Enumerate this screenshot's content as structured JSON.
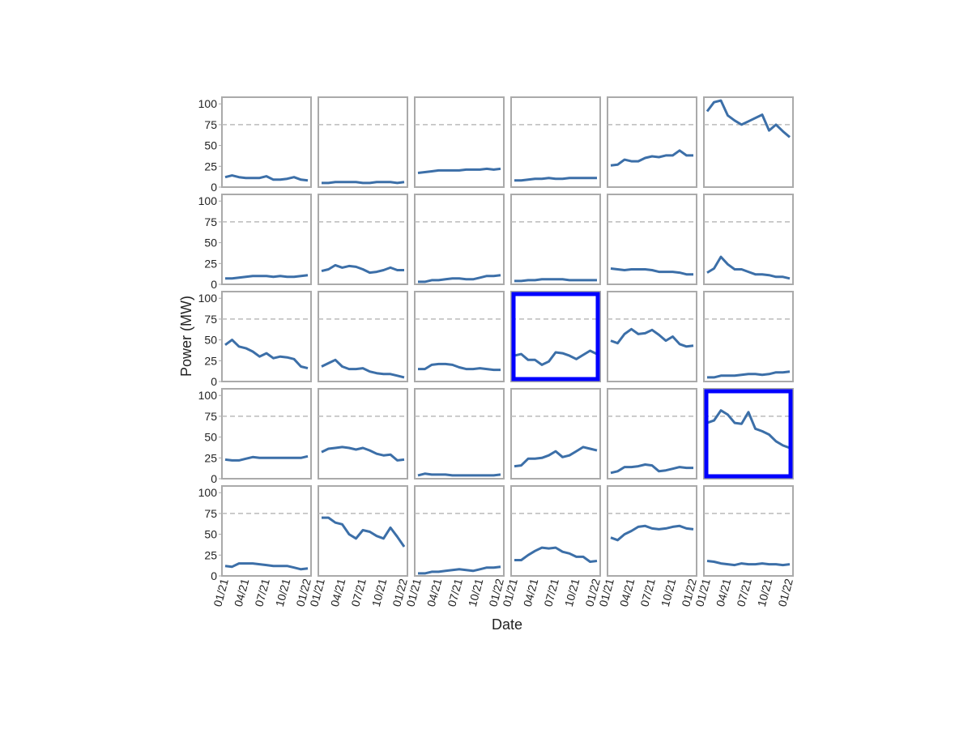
{
  "chart_data": {
    "type": "line",
    "xlabel": "Date",
    "ylabel": "Power (MW)",
    "x": [
      "01/21",
      "02/21",
      "03/21",
      "04/21",
      "05/21",
      "06/21",
      "07/21",
      "08/21",
      "09/21",
      "10/21",
      "11/21",
      "12/21",
      "01/22"
    ],
    "xticks": [
      "01/21",
      "04/21",
      "07/21",
      "10/21",
      "01/22"
    ],
    "ylim": [
      0,
      108
    ],
    "yticks": [
      0,
      25,
      50,
      75,
      100
    ],
    "hline": 75,
    "color": "#3c6fa8",
    "highlight_color": "#0000ff",
    "panels": [
      {
        "values": [
          12,
          14,
          12,
          11,
          11,
          11,
          13,
          9,
          9,
          10,
          12,
          9,
          8
        ]
      },
      {
        "values": [
          5,
          5,
          6,
          6,
          6,
          6,
          5,
          5,
          6,
          6,
          6,
          5,
          6
        ]
      },
      {
        "values": [
          17,
          18,
          19,
          20,
          20,
          20,
          20,
          21,
          21,
          21,
          22,
          21,
          22
        ]
      },
      {
        "values": [
          8,
          8,
          9,
          10,
          10,
          11,
          10,
          10,
          11,
          11,
          11,
          11,
          11
        ]
      },
      {
        "values": [
          26,
          27,
          33,
          31,
          31,
          35,
          37,
          36,
          38,
          38,
          44,
          38,
          38
        ]
      },
      {
        "values": [
          91,
          102,
          104,
          86,
          80,
          75,
          79,
          83,
          87,
          68,
          75,
          67,
          60
        ]
      },
      {
        "values": [
          7,
          7,
          8,
          9,
          10,
          10,
          10,
          9,
          10,
          9,
          9,
          10,
          11
        ]
      },
      {
        "values": [
          16,
          18,
          23,
          20,
          22,
          21,
          18,
          14,
          15,
          17,
          20,
          17,
          17
        ]
      },
      {
        "values": [
          3,
          3,
          5,
          5,
          6,
          7,
          7,
          6,
          6,
          8,
          10,
          10,
          11
        ]
      },
      {
        "values": [
          4,
          4,
          5,
          5,
          6,
          6,
          6,
          6,
          5,
          5,
          5,
          5,
          5
        ]
      },
      {
        "values": [
          19,
          18,
          17,
          18,
          18,
          18,
          17,
          15,
          15,
          15,
          14,
          12,
          12
        ]
      },
      {
        "values": [
          14,
          19,
          33,
          24,
          18,
          18,
          15,
          12,
          12,
          11,
          9,
          9,
          7
        ]
      },
      {
        "values": [
          44,
          50,
          42,
          40,
          36,
          30,
          34,
          28,
          30,
          29,
          27,
          18,
          16
        ]
      },
      {
        "values": [
          18,
          22,
          26,
          18,
          15,
          15,
          16,
          12,
          10,
          9,
          9,
          7,
          5
        ]
      },
      {
        "values": [
          15,
          15,
          20,
          21,
          21,
          20,
          17,
          15,
          15,
          16,
          15,
          14,
          14
        ]
      },
      {
        "values": [
          31,
          33,
          26,
          26,
          20,
          24,
          35,
          34,
          31,
          27,
          32,
          37,
          33
        ],
        "highlight": true
      },
      {
        "values": [
          49,
          46,
          57,
          63,
          57,
          58,
          62,
          56,
          49,
          54,
          45,
          42,
          43
        ]
      },
      {
        "values": [
          5,
          5,
          7,
          7,
          7,
          8,
          9,
          9,
          8,
          9,
          11,
          11,
          12
        ]
      },
      {
        "values": [
          23,
          22,
          22,
          24,
          26,
          25,
          25,
          25,
          25,
          25,
          25,
          25,
          27
        ]
      },
      {
        "values": [
          32,
          36,
          37,
          38,
          37,
          35,
          37,
          34,
          30,
          28,
          29,
          22,
          23
        ]
      },
      {
        "values": [
          4,
          6,
          5,
          5,
          5,
          4,
          4,
          4,
          4,
          4,
          4,
          4,
          5
        ]
      },
      {
        "values": [
          15,
          16,
          24,
          24,
          25,
          28,
          33,
          26,
          28,
          33,
          38,
          36,
          34
        ]
      },
      {
        "values": [
          7,
          9,
          14,
          14,
          15,
          17,
          16,
          9,
          10,
          12,
          14,
          13,
          13
        ]
      },
      {
        "values": [
          67,
          70,
          82,
          77,
          67,
          66,
          80,
          60,
          57,
          53,
          45,
          40,
          37
        ],
        "highlight": true
      },
      {
        "values": [
          12,
          11,
          15,
          15,
          15,
          14,
          13,
          12,
          12,
          12,
          10,
          8,
          9
        ]
      },
      {
        "values": [
          70,
          70,
          64,
          62,
          50,
          45,
          55,
          53,
          48,
          45,
          58,
          47,
          35
        ]
      },
      {
        "values": [
          3,
          3,
          5,
          5,
          6,
          7,
          8,
          7,
          6,
          8,
          10,
          10,
          11
        ]
      },
      {
        "values": [
          19,
          19,
          25,
          30,
          34,
          33,
          34,
          29,
          27,
          23,
          23,
          17,
          18
        ]
      },
      {
        "values": [
          46,
          43,
          50,
          54,
          59,
          60,
          57,
          56,
          57,
          59,
          60,
          57,
          56
        ]
      },
      {
        "values": [
          18,
          17,
          15,
          14,
          13,
          15,
          14,
          14,
          15,
          14,
          14,
          13,
          14
        ]
      }
    ]
  }
}
